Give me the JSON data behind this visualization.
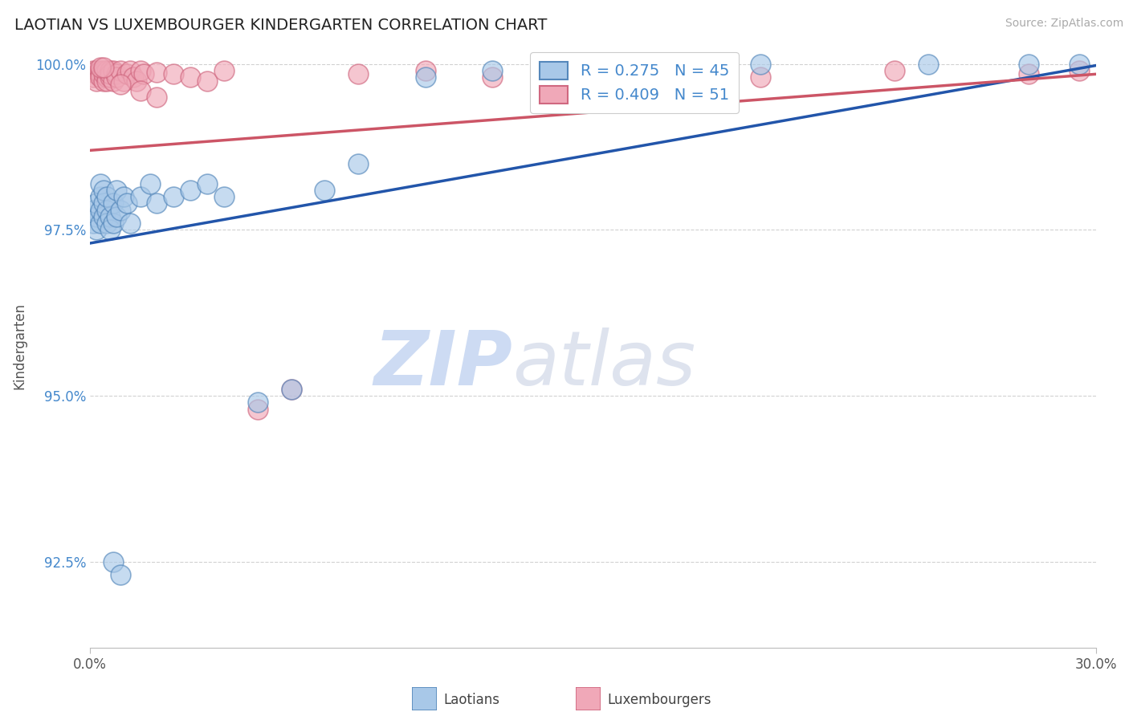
{
  "title": "LAOTIAN VS LUXEMBOURGER KINDERGARTEN CORRELATION CHART",
  "source_text": "Source: ZipAtlas.com",
  "ylabel": "Kindergarten",
  "xlim": [
    0.0,
    0.3
  ],
  "ylim": [
    0.912,
    1.003
  ],
  "xticks": [
    0.0,
    0.3
  ],
  "xticklabels": [
    "0.0%",
    "30.0%"
  ],
  "yticks": [
    1.0,
    0.975,
    0.95,
    0.925
  ],
  "yticklabels": [
    "100.0%",
    "97.5%",
    "95.0%",
    "92.5%"
  ],
  "blue_fill": "#a8c8e8",
  "blue_edge": "#5588bb",
  "pink_fill": "#f0a8b8",
  "pink_edge": "#d06880",
  "blue_line_color": "#2255aa",
  "pink_line_color": "#cc5566",
  "legend_blue_r": "R = 0.275",
  "legend_blue_n": "N = 45",
  "legend_pink_r": "R = 0.409",
  "legend_pink_n": "N = 51",
  "watermark": "ZIPatlas",
  "watermark_color": "#d0dff0",
  "blue_line_x0": 0.0,
  "blue_line_y0": 0.973,
  "blue_line_x1": 0.3,
  "blue_line_y1": 0.9998,
  "pink_line_x0": 0.0,
  "pink_line_y0": 0.987,
  "pink_line_x1": 0.3,
  "pink_line_y1": 0.9985,
  "blue_x": [
    0.001,
    0.001,
    0.002,
    0.002,
    0.002,
    0.003,
    0.003,
    0.003,
    0.003,
    0.004,
    0.004,
    0.004,
    0.005,
    0.005,
    0.005,
    0.006,
    0.006,
    0.007,
    0.007,
    0.008,
    0.008,
    0.009,
    0.01,
    0.011,
    0.012,
    0.015,
    0.018,
    0.02,
    0.025,
    0.03,
    0.035,
    0.04,
    0.05,
    0.06,
    0.07,
    0.08,
    0.1,
    0.12,
    0.15,
    0.2,
    0.25,
    0.28,
    0.295,
    0.007,
    0.009
  ],
  "blue_y": [
    0.976,
    0.978,
    0.977,
    0.979,
    0.975,
    0.976,
    0.978,
    0.98,
    0.982,
    0.977,
    0.979,
    0.981,
    0.978,
    0.976,
    0.98,
    0.977,
    0.975,
    0.976,
    0.979,
    0.981,
    0.977,
    0.978,
    0.98,
    0.979,
    0.976,
    0.98,
    0.982,
    0.979,
    0.98,
    0.981,
    0.982,
    0.98,
    0.949,
    0.951,
    0.981,
    0.985,
    0.998,
    0.999,
    1.0,
    1.0,
    1.0,
    1.0,
    1.0,
    0.925,
    0.923
  ],
  "pink_x": [
    0.001,
    0.001,
    0.002,
    0.002,
    0.002,
    0.003,
    0.003,
    0.003,
    0.004,
    0.004,
    0.004,
    0.005,
    0.005,
    0.005,
    0.006,
    0.006,
    0.006,
    0.007,
    0.007,
    0.008,
    0.008,
    0.009,
    0.01,
    0.011,
    0.012,
    0.013,
    0.014,
    0.015,
    0.016,
    0.02,
    0.025,
    0.03,
    0.035,
    0.04,
    0.05,
    0.06,
    0.08,
    0.1,
    0.12,
    0.14,
    0.16,
    0.18,
    0.2,
    0.24,
    0.28,
    0.295,
    0.009,
    0.015,
    0.02,
    0.003,
    0.004
  ],
  "pink_y": [
    0.999,
    0.998,
    0.9985,
    0.999,
    0.9975,
    0.999,
    0.9985,
    0.998,
    0.999,
    0.9975,
    0.9985,
    0.999,
    0.998,
    0.9975,
    0.999,
    0.998,
    0.9985,
    0.9975,
    0.999,
    0.9985,
    0.998,
    0.999,
    0.9975,
    0.9985,
    0.999,
    0.998,
    0.9975,
    0.999,
    0.9985,
    0.9988,
    0.9985,
    0.998,
    0.9975,
    0.999,
    0.948,
    0.951,
    0.9985,
    0.999,
    0.998,
    0.9985,
    0.999,
    0.9985,
    0.998,
    0.999,
    0.9985,
    0.999,
    0.997,
    0.996,
    0.995,
    0.9995,
    0.9995
  ]
}
